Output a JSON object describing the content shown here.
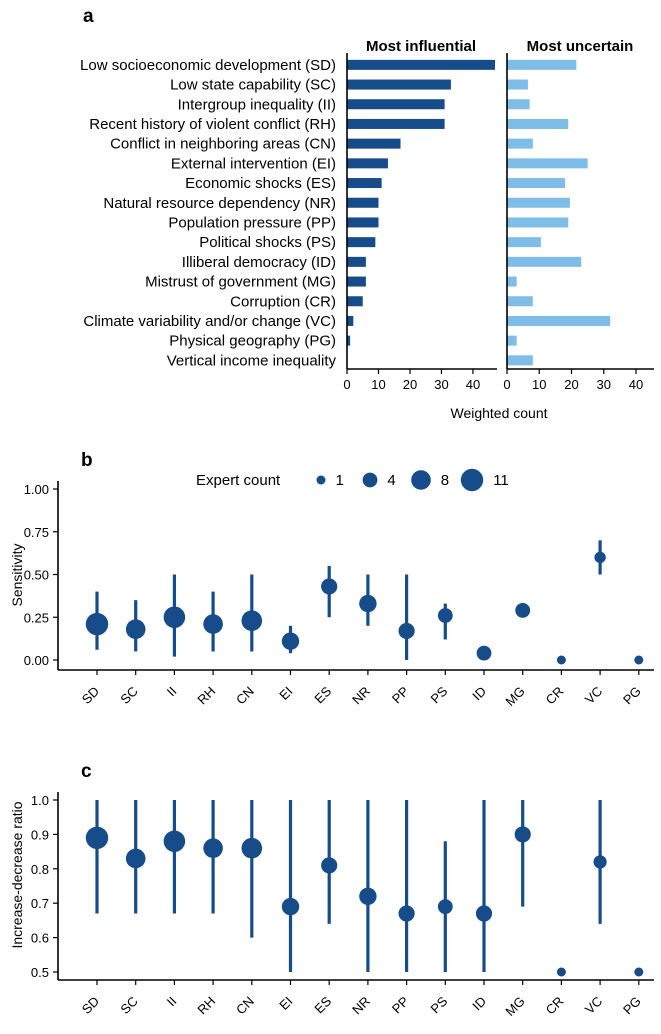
{
  "colors": {
    "influential": "#174c8a",
    "uncertain": "#7fbde9",
    "points": "#174c8a"
  },
  "panel_a": {
    "letter": "a",
    "left_header": "Most influential",
    "right_header": "Most uncertain",
    "xlabel": "Weighted count"
  },
  "panel_b": {
    "letter": "b",
    "ylabel": "Sensitivity",
    "legend_title": "Expert count"
  },
  "panel_c": {
    "letter": "c",
    "ylabel": "Increase-decrease ratio"
  },
  "chart_data": [
    {
      "type": "bar",
      "orientation": "horizontal",
      "title": "",
      "xlabel": "Weighted count",
      "xlim": [
        0,
        45
      ],
      "xticks": [
        0,
        10,
        20,
        30,
        40
      ],
      "categories": [
        "Low socioeconomic development (SD)",
        "Low state capability (SC)",
        "Intergroup inequality (II)",
        "Recent history of violent conflict (RH)",
        "Conflict in neighboring areas (CN)",
        "External intervention (EI)",
        "Economic shocks (ES)",
        "Natural resource dependency (NR)",
        "Population pressure (PP)",
        "Political shocks (PS)",
        "Illiberal democracy (ID)",
        "Mistrust of government (MG)",
        "Corruption (CR)",
        "Climate variability and/or change (VC)",
        "Physical geography (PG)",
        "Vertical income inequality"
      ],
      "series": [
        {
          "name": "Most influential",
          "values": [
            47,
            33,
            31,
            31,
            17,
            13,
            11,
            10,
            10,
            9,
            6,
            6,
            5,
            2,
            1,
            0
          ]
        },
        {
          "name": "Most uncertain",
          "values": [
            21.5,
            6.5,
            7,
            19,
            8,
            25,
            18,
            19.5,
            19,
            10.5,
            23,
            3,
            8,
            32,
            3,
            8
          ]
        }
      ]
    },
    {
      "type": "scatter",
      "title": "",
      "xlabel": "",
      "ylabel": "Sensitivity",
      "ylim": [
        0,
        1
      ],
      "yticks": [
        "0.00",
        "0.25",
        "0.50",
        "0.75",
        "1.00"
      ],
      "categories": [
        "SD",
        "SC",
        "II",
        "RH",
        "CN",
        "EI",
        "ES",
        "NR",
        "PP",
        "PS",
        "ID",
        "MG",
        "CR",
        "VC",
        "PG"
      ],
      "values": [
        0.21,
        0.18,
        0.25,
        0.21,
        0.23,
        0.11,
        0.43,
        0.33,
        0.17,
        0.26,
        0.04,
        0.29,
        0.0,
        0.6,
        0.0
      ],
      "low": [
        0.06,
        0.05,
        0.02,
        0.05,
        0.05,
        0.04,
        0.25,
        0.2,
        0.0,
        0.12,
        null,
        null,
        null,
        0.5,
        null
      ],
      "high": [
        0.4,
        0.35,
        0.5,
        0.4,
        0.5,
        0.2,
        0.55,
        0.5,
        0.5,
        0.33,
        null,
        null,
        null,
        0.7,
        null
      ],
      "expert_count": [
        11,
        8,
        10,
        8,
        9,
        6,
        5,
        6,
        5,
        4,
        4,
        4,
        1,
        2,
        1
      ],
      "legend": {
        "title": "Expert count",
        "sizes": [
          1,
          4,
          8,
          11
        ],
        "labels": [
          "1",
          "4",
          "8",
          "11"
        ],
        "placement": "top"
      }
    },
    {
      "type": "scatter",
      "title": "",
      "xlabel": "",
      "ylabel": "Increase-decrease ratio",
      "ylim": [
        0.5,
        1.0
      ],
      "yticks": [
        "0.5",
        "0.6",
        "0.7",
        "0.8",
        "0.9",
        "1.0"
      ],
      "categories": [
        "SD",
        "SC",
        "II",
        "RH",
        "CN",
        "EI",
        "ES",
        "NR",
        "PP",
        "PS",
        "ID",
        "MG",
        "CR",
        "VC",
        "PG"
      ],
      "values": [
        0.89,
        0.83,
        0.88,
        0.86,
        0.86,
        0.69,
        0.81,
        0.72,
        0.67,
        0.69,
        0.67,
        0.9,
        0.5,
        0.82,
        0.5
      ],
      "low": [
        0.67,
        0.67,
        0.67,
        0.67,
        0.6,
        0.5,
        0.64,
        0.5,
        0.5,
        0.5,
        0.5,
        0.69,
        null,
        0.64,
        null
      ],
      "high": [
        1.0,
        1.0,
        1.0,
        1.0,
        1.0,
        1.0,
        1.0,
        1.0,
        1.0,
        0.88,
        1.0,
        1.0,
        null,
        1.0,
        null
      ],
      "expert_count": [
        11,
        8,
        10,
        8,
        9,
        6,
        5,
        6,
        5,
        4,
        5,
        5,
        1,
        3,
        1
      ]
    }
  ]
}
